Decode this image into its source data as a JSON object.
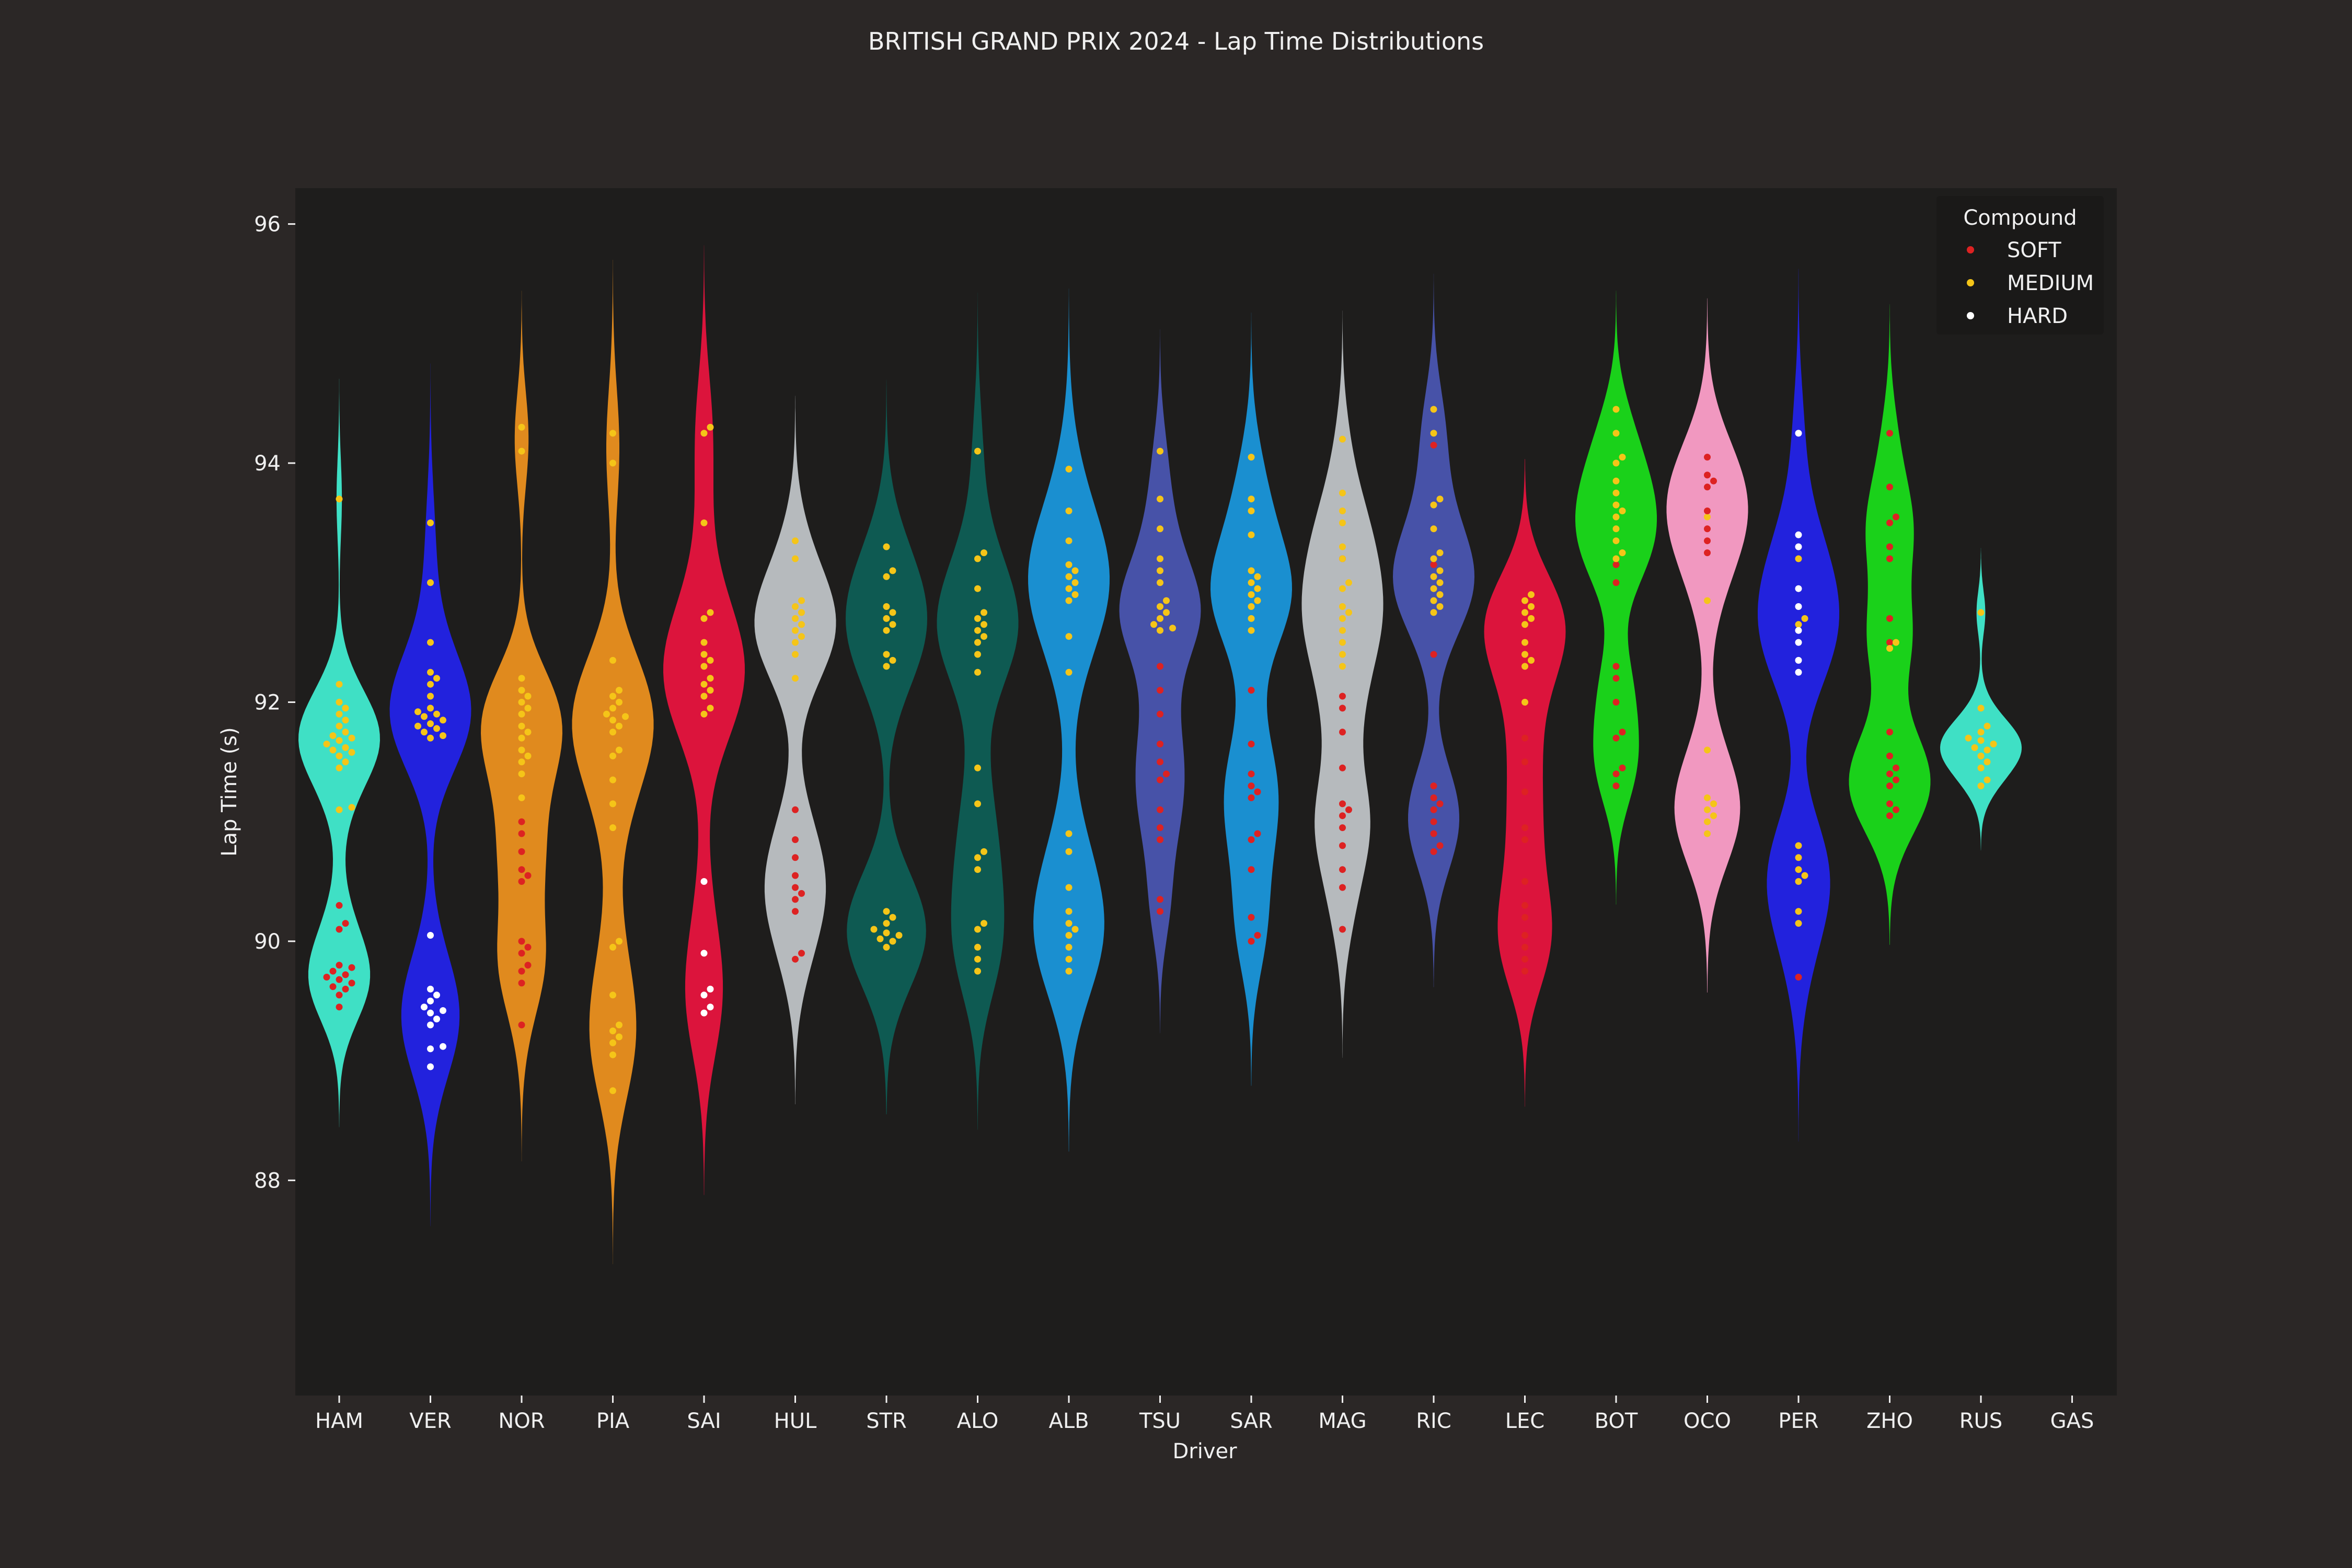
{
  "chart_data": {
    "type": "violin",
    "title": "BRITISH GRAND PRIX 2024 - Lap Time Distributions",
    "xlabel": "Driver",
    "ylabel": "Lap Time (s)",
    "ylim": [
      86.2,
      96.3
    ],
    "yticks": [
      88,
      90,
      92,
      94
    ],
    "extra_ytick": 96,
    "legend": {
      "title": "Compound",
      "placement": "top-right",
      "entries": [
        {
          "label": "SOFT",
          "color": "#dd2222"
        },
        {
          "label": "MEDIUM",
          "color": "#f5c518"
        },
        {
          "label": "HARD",
          "color": "#ffffff"
        }
      ]
    },
    "compound_colors": {
      "SOFT": "#dd2222",
      "MEDIUM": "#f5c518",
      "HARD": "#ffffff"
    },
    "background": {
      "figure": "#2b2726",
      "axes": "#1e1d1c"
    },
    "drivers": [
      {
        "code": "HAM",
        "color": "#3fe0c5",
        "laps": {
          "SOFT": [
            89.45,
            89.55,
            89.6,
            89.62,
            89.65,
            89.68,
            89.7,
            89.72,
            89.75,
            89.78,
            89.8,
            90.1,
            90.15,
            90.3
          ],
          "MEDIUM": [
            91.1,
            91.12,
            91.45,
            91.5,
            91.55,
            91.58,
            91.6,
            91.62,
            91.65,
            91.68,
            91.7,
            91.72,
            91.75,
            91.8,
            91.85,
            91.9,
            91.95,
            92.0,
            92.15,
            93.7
          ]
        }
      },
      {
        "code": "VER",
        "color": "#2222dd",
        "laps": {
          "HARD": [
            88.95,
            89.1,
            89.12,
            89.3,
            89.35,
            89.4,
            89.42,
            89.45,
            89.5,
            89.55,
            89.6,
            90.05
          ],
          "MEDIUM": [
            91.7,
            91.72,
            91.75,
            91.78,
            91.8,
            91.82,
            91.85,
            91.88,
            91.9,
            91.92,
            91.95,
            92.05,
            92.15,
            92.2,
            92.25,
            92.5,
            93.0,
            93.5
          ]
        }
      },
      {
        "code": "NOR",
        "color": "#e08a1e",
        "laps": {
          "SOFT": [
            89.3,
            89.65,
            89.75,
            89.8,
            89.9,
            89.95,
            90.0,
            90.5,
            90.55,
            90.6,
            90.75,
            90.9,
            91.0
          ],
          "MEDIUM": [
            91.2,
            91.4,
            91.5,
            91.55,
            91.6,
            91.7,
            91.75,
            91.8,
            91.9,
            91.95,
            92.0,
            92.05,
            92.1,
            92.2,
            94.1,
            94.3
          ]
        }
      },
      {
        "code": "PIA",
        "color": "#e08a1e",
        "laps": {
          "MEDIUM": [
            88.75,
            89.05,
            89.15,
            89.2,
            89.25,
            89.3,
            89.55,
            89.95,
            90.0,
            90.95,
            91.15,
            91.35,
            91.55,
            91.6,
            91.75,
            91.8,
            91.85,
            91.88,
            91.9,
            91.95,
            92.0,
            92.05,
            92.1,
            92.35,
            94.0,
            94.25
          ]
        }
      },
      {
        "code": "SAI",
        "color": "#dc143c",
        "laps": {
          "HARD": [
            89.4,
            89.45,
            89.55,
            89.6,
            89.9,
            90.5
          ],
          "MEDIUM": [
            91.9,
            91.95,
            92.05,
            92.1,
            92.15,
            92.2,
            92.3,
            92.35,
            92.4,
            92.5,
            92.7,
            92.75,
            93.5,
            94.25,
            94.3
          ]
        }
      },
      {
        "code": "HUL",
        "color": "#b6babd",
        "laps": {
          "SOFT": [
            89.85,
            89.9,
            90.25,
            90.35,
            90.4,
            90.45,
            90.55,
            90.7,
            90.85,
            91.1
          ],
          "MEDIUM": [
            92.2,
            92.4,
            92.5,
            92.55,
            92.6,
            92.65,
            92.7,
            92.75,
            92.8,
            92.85,
            93.2,
            93.35
          ]
        }
      },
      {
        "code": "STR",
        "color": "#0e5a52",
        "laps": {
          "MEDIUM": [
            89.95,
            90.0,
            90.02,
            90.05,
            90.07,
            90.1,
            90.15,
            90.2,
            90.25,
            92.3,
            92.35,
            92.4,
            92.6,
            92.65,
            92.7,
            92.75,
            92.8,
            93.05,
            93.1,
            93.3
          ]
        }
      },
      {
        "code": "ALO",
        "color": "#0e5a52",
        "laps": {
          "MEDIUM": [
            89.75,
            89.85,
            89.95,
            90.1,
            90.15,
            90.6,
            90.7,
            90.75,
            91.15,
            91.45,
            92.25,
            92.4,
            92.5,
            92.55,
            92.6,
            92.65,
            92.7,
            92.75,
            92.95,
            93.2,
            93.25,
            94.1
          ]
        }
      },
      {
        "code": "ALB",
        "color": "#1a8fd0",
        "laps": {
          "MEDIUM": [
            89.75,
            89.85,
            89.95,
            90.05,
            90.1,
            90.15,
            90.25,
            90.45,
            90.75,
            90.9,
            92.25,
            92.55,
            92.85,
            92.9,
            92.95,
            93.0,
            93.05,
            93.1,
            93.15,
            93.35,
            93.6,
            93.95
          ]
        }
      },
      {
        "code": "TSU",
        "color": "#4752a8",
        "laps": {
          "SOFT": [
            90.25,
            90.35,
            90.85,
            90.95,
            91.1,
            91.35,
            91.4,
            91.5,
            91.65,
            91.9,
            92.1,
            92.3
          ],
          "MEDIUM": [
            92.6,
            92.62,
            92.65,
            92.7,
            92.75,
            92.8,
            92.85,
            93.0,
            93.1,
            93.2,
            93.45,
            93.7,
            94.1
          ]
        }
      },
      {
        "code": "SAR",
        "color": "#1a8fd0",
        "laps": {
          "SOFT": [
            90.0,
            90.05,
            90.2,
            90.6,
            90.85,
            90.9,
            91.2,
            91.25,
            91.3,
            91.4,
            91.65,
            92.1
          ],
          "MEDIUM": [
            92.6,
            92.7,
            92.8,
            92.85,
            92.9,
            92.95,
            93.0,
            93.05,
            93.1,
            93.4,
            93.6,
            93.7,
            94.05
          ]
        }
      },
      {
        "code": "MAG",
        "color": "#b6babd",
        "laps": {
          "SOFT": [
            90.1,
            90.45,
            90.6,
            90.8,
            90.95,
            91.05,
            91.1,
            91.15,
            91.45,
            91.75,
            91.95,
            92.05,
            93.2
          ],
          "MEDIUM": [
            92.3,
            92.4,
            92.5,
            92.6,
            92.7,
            92.75,
            92.8,
            92.95,
            93.0,
            93.2,
            93.3,
            93.5,
            93.6,
            93.75,
            94.2
          ]
        }
      },
      {
        "code": "RIC",
        "color": "#4752a8",
        "laps": {
          "SOFT": [
            90.75,
            90.8,
            90.9,
            91.0,
            91.1,
            91.15,
            91.2,
            91.3,
            92.4,
            93.15,
            94.15
          ],
          "MEDIUM": [
            92.75,
            92.8,
            92.85,
            92.9,
            92.95,
            93.0,
            93.05,
            93.1,
            93.2,
            93.25,
            93.45,
            93.65,
            93.7,
            94.25,
            94.45
          ]
        }
      },
      {
        "code": "LEC",
        "color": "#dc143c",
        "laps": {
          "SOFT": [
            89.75,
            89.85,
            89.95,
            90.05,
            90.2,
            90.3,
            90.5,
            90.85,
            90.95,
            91.25,
            91.5,
            91.7
          ],
          "MEDIUM": [
            92.0,
            92.3,
            92.35,
            92.4,
            92.5,
            92.65,
            92.7,
            92.75,
            92.8,
            92.85,
            92.9
          ]
        }
      },
      {
        "code": "BOT",
        "color": "#1ad11a",
        "laps": {
          "SOFT": [
            91.3,
            91.4,
            91.45,
            91.7,
            91.75,
            92.0,
            92.2,
            92.3,
            93.0,
            93.15
          ],
          "MEDIUM": [
            93.2,
            93.25,
            93.35,
            93.45,
            93.55,
            93.6,
            93.65,
            93.75,
            93.85,
            94.0,
            94.05,
            94.25,
            94.45
          ]
        }
      },
      {
        "code": "OCO",
        "color": "#f198c0",
        "laps": {
          "MEDIUM": [
            90.9,
            91.0,
            91.05,
            91.1,
            91.15,
            91.2,
            91.6,
            92.85,
            93.55
          ],
          "SOFT": [
            93.25,
            93.35,
            93.45,
            93.6,
            93.8,
            93.85,
            93.9,
            94.05
          ]
        }
      },
      {
        "code": "PER",
        "color": "#2222dd",
        "laps": {
          "SOFT": [
            89.7
          ],
          "MEDIUM": [
            90.15,
            90.25,
            90.5,
            90.55,
            90.6,
            90.7,
            90.8,
            92.65,
            92.7,
            93.2
          ],
          "HARD": [
            92.25,
            92.35,
            92.5,
            92.6,
            92.8,
            92.95,
            93.3,
            93.4,
            94.25
          ]
        }
      },
      {
        "code": "ZHO",
        "color": "#1ad11a",
        "laps": {
          "SOFT": [
            91.05,
            91.1,
            91.15,
            91.3,
            91.35,
            91.4,
            91.45,
            91.55,
            91.75,
            92.5,
            92.7,
            93.2,
            93.3,
            93.5,
            93.55,
            93.8,
            94.25
          ],
          "MEDIUM": [
            92.45,
            92.5
          ]
        }
      },
      {
        "code": "RUS",
        "color": "#3fe0c5",
        "laps": {
          "MEDIUM": [
            91.3,
            91.35,
            91.45,
            91.5,
            91.55,
            91.6,
            91.62,
            91.65,
            91.68,
            91.7,
            91.75,
            91.8,
            91.95,
            92.75
          ]
        }
      },
      {
        "code": "GAS",
        "color": "#ffffff",
        "laps": {}
      }
    ]
  }
}
